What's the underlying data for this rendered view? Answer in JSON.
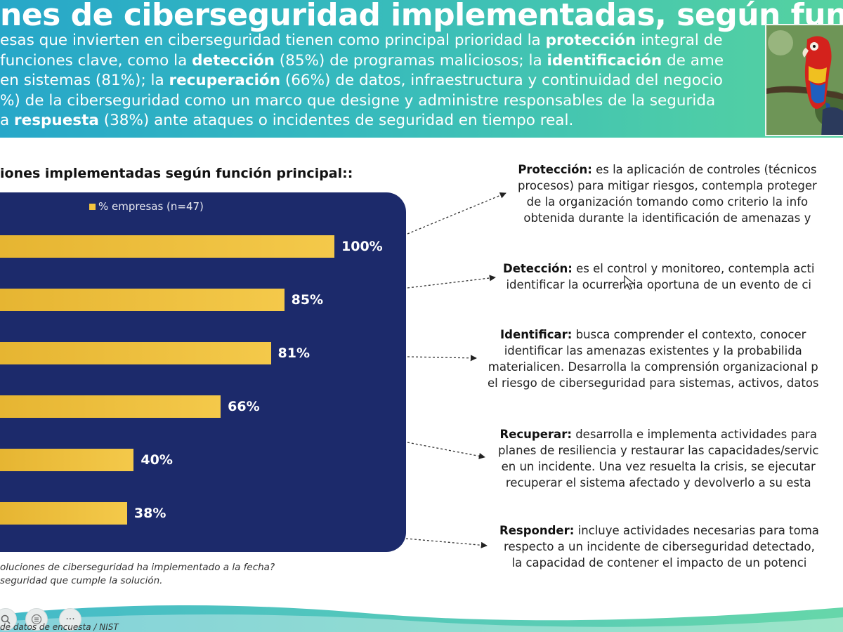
{
  "slide": {
    "title": "nes de ciberseguridad implementadas, según función",
    "intro_lines": [
      [
        {
          "t": "esas que invierten en ciberseguridad tienen como principal prioridad la "
        },
        {
          "t": "protección",
          "b": true
        },
        {
          "t": " integral de"
        }
      ],
      [
        {
          "t": " funciones clave, como la "
        },
        {
          "t": "detección",
          "b": true
        },
        {
          "t": " (85%) de programas maliciosos; la "
        },
        {
          "t": "identificación",
          "b": true
        },
        {
          "t": " de ame"
        }
      ],
      [
        {
          "t": "en sistemas (81%); la "
        },
        {
          "t": "recuperación",
          "b": true
        },
        {
          "t": " (66%) de datos, infraestructura y continuidad del negocio"
        }
      ],
      [
        {
          "t": "%) de la ciberseguridad como un marco que designe y administre responsables de la segurida"
        }
      ],
      [
        {
          "t": "a "
        },
        {
          "t": "respuesta",
          "b": true
        },
        {
          "t": " (38%) ante ataques o incidentes de seguridad en tiempo real."
        }
      ]
    ],
    "chart_subtitle": "iones implementadas según función principal::",
    "footnote_lines": [
      "oluciones de ciberseguridad ha implementado a la fecha?",
      "seguridad que cumple la solución."
    ],
    "source": "de datos de encuesta / NIST"
  },
  "chart_data": {
    "type": "bar",
    "orientation": "horizontal",
    "categories": [
      "",
      "",
      "",
      "",
      "",
      ""
    ],
    "series": [
      {
        "name": "% empresas (n=47)",
        "values": [
          100,
          85,
          81,
          66,
          40,
          38
        ]
      }
    ],
    "value_labels": [
      "100%",
      "85%",
      "81%",
      "66%",
      "40%",
      "38%"
    ],
    "unit": "%",
    "xlim": [
      0,
      100
    ],
    "grid": false,
    "legend": "top",
    "colors": {
      "bar": "#f2c33f",
      "panel": "#1c2a6b",
      "label": "#ffffff"
    }
  },
  "definitions": [
    {
      "term": "Protección:",
      "lines": [
        "es la aplicación de controles (técnicos",
        "procesos) para mitigar riesgos, contempla proteger",
        "de la organización tomando como criterio la info",
        "obtenida durante la identificación de amenazas y"
      ]
    },
    {
      "term": "Detección:",
      "lines": [
        "es el control y monitoreo, contempla acti",
        "identificar la ocurrencia oportuna de un evento de ci"
      ]
    },
    {
      "term": "Identificar:",
      "lines": [
        "busca comprender el contexto, conocer",
        "identificar las amenazas existentes y la probabilida",
        "materialicen. Desarrolla la comprensión organizacional p",
        "el riesgo de ciberseguridad para sistemas, activos, datos"
      ]
    },
    {
      "term": "Recuperar:",
      "lines": [
        "desarrolla e implementa actividades para",
        "planes de resiliencia y restaurar las capacidades/servic",
        "en un incidente. Una vez resuelta la crisis, se ejecutar",
        "recuperar el sistema afectado y devolverlo a su esta"
      ]
    },
    {
      "term": "Responder:",
      "lines": [
        "incluye actividades necesarias para toma",
        "respecto a un incidente de ciberseguridad detectado,",
        "la capacidad de contener el impacto de un potenci"
      ]
    }
  ],
  "toolbar": {
    "icons": [
      "zoom-icon",
      "menu-icon",
      "more-icon"
    ],
    "more_label": "···"
  },
  "colors": {
    "header_start": "#27a7c9",
    "header_end": "#55d2a0",
    "accent": "#f2c33f",
    "panel": "#1c2a6b"
  }
}
